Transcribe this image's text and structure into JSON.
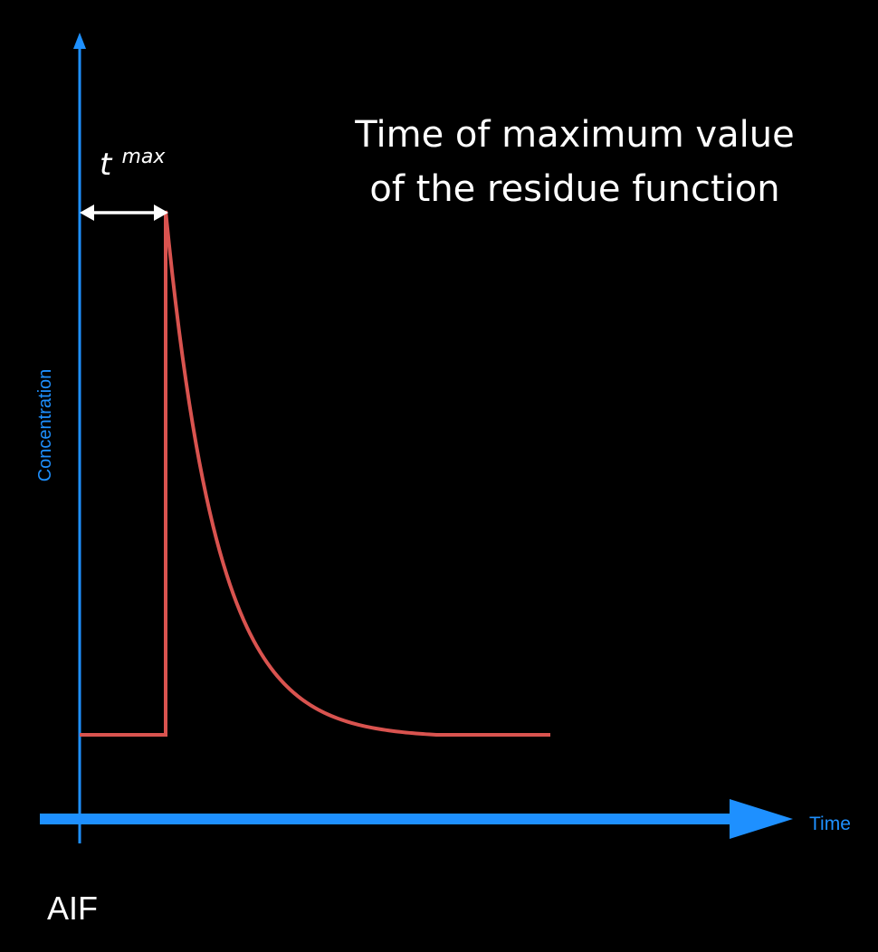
{
  "caption": {
    "line1": "Time of maximum value",
    "line2": "of the residue function"
  },
  "axes": {
    "ylabel": "Concentration",
    "xlabel": "Time",
    "color": "#1e90ff"
  },
  "annotation": {
    "symbol": "t",
    "superscript": "max"
  },
  "curve": {
    "color": "#d9534f"
  },
  "panel_label": "AIF"
}
